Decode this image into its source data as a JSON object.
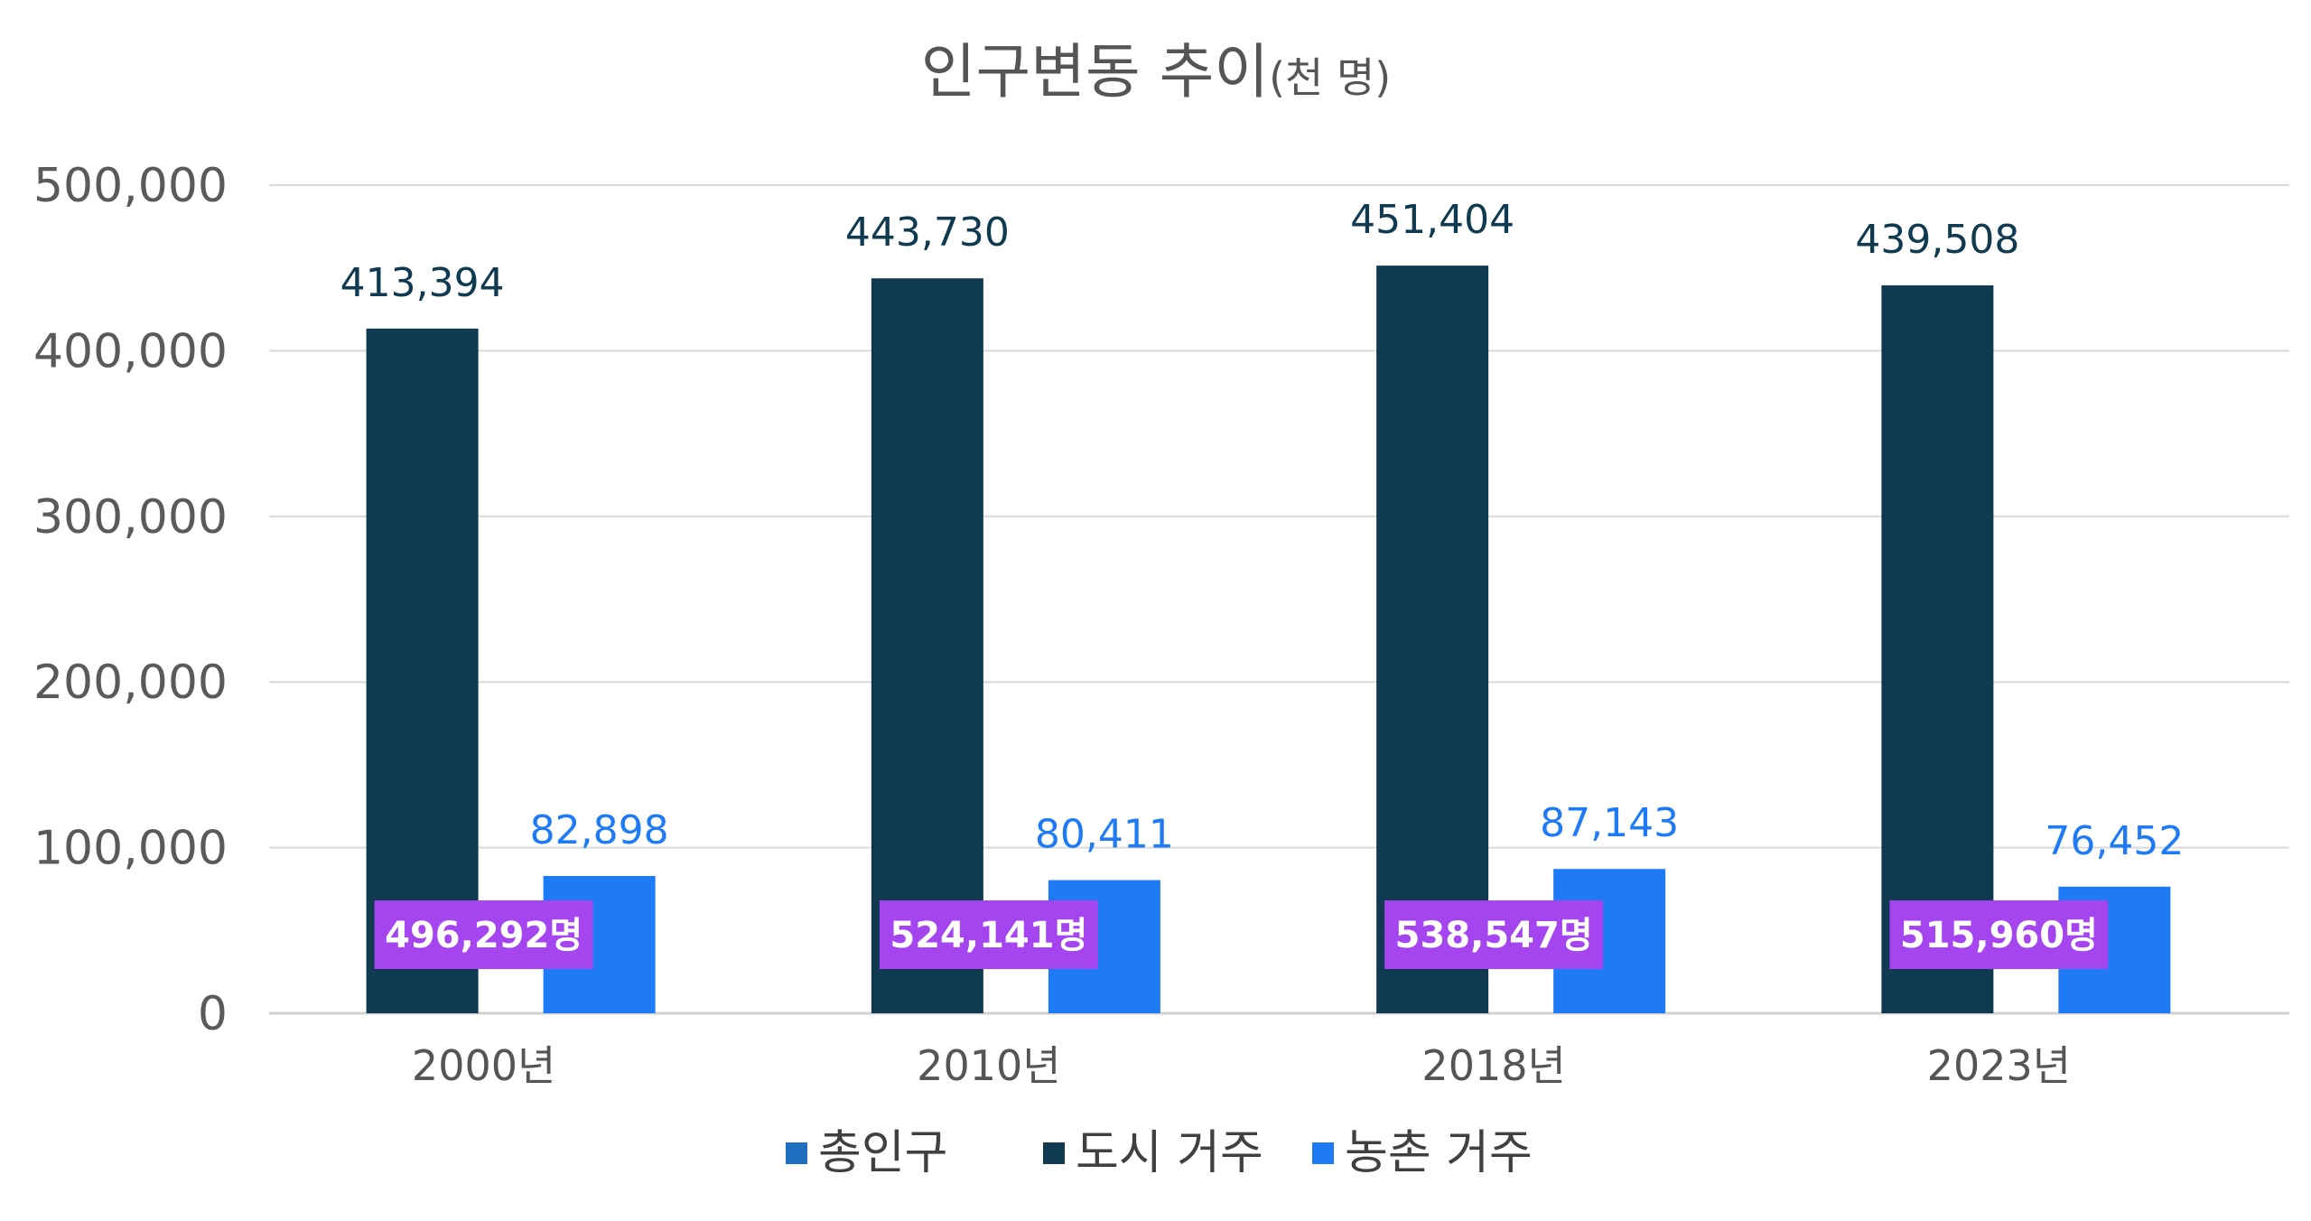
{
  "chart_data": {
    "type": "bar",
    "title": "인구변동 추이",
    "title_unit": "(천 명)",
    "categories": [
      "2000년",
      "2010년",
      "2018년",
      "2023년"
    ],
    "series": [
      {
        "name": "총인구",
        "color": "#1f6fc1",
        "values": [
          496292,
          524141,
          538547,
          515960
        ],
        "labels": [
          "496,292명",
          "524,141명",
          "538,547명",
          "515,960명"
        ]
      },
      {
        "name": "도시 거주",
        "color": "#0f3a4f",
        "values": [
          413394,
          443730,
          451404,
          439508
        ],
        "labels": [
          "413,394",
          "443,730",
          "451,404",
          "439,508"
        ]
      },
      {
        "name": "농촌 거주",
        "color": "#1f7bf5",
        "values": [
          82898,
          80411,
          87143,
          76452
        ],
        "labels": [
          "82,898",
          "80,411",
          "87,143",
          "76,452"
        ]
      }
    ],
    "ylim": [
      0,
      500000
    ],
    "yticks": [
      0,
      100000,
      200000,
      300000,
      400000,
      500000
    ],
    "ytick_labels": [
      "0",
      "100,000",
      "200,000",
      "300,000",
      "400,000",
      "500,000"
    ],
    "total_label_color": "#a445f0",
    "grid": true,
    "legend_position": "bottom",
    "xlabel": "",
    "ylabel": ""
  }
}
